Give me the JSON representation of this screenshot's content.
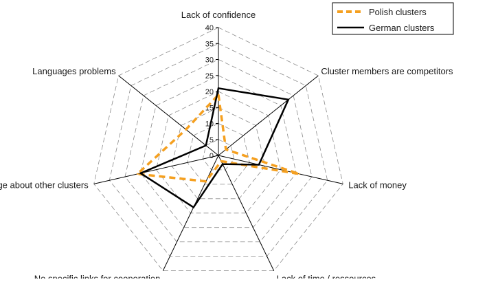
{
  "chart_data": {
    "type": "radar",
    "axes": [
      "Lack of confidence",
      "Cluster members are competitors",
      "Lack of money",
      "Lack of time / ressources",
      "No specific links for cooperation",
      "Little knowledge about other clusters",
      "Languages problems"
    ],
    "series": [
      {
        "name": "Polish clusters",
        "values": [
          19,
          3,
          26,
          2,
          9,
          26,
          13
        ],
        "color": "#f5a020",
        "style": "dashed"
      },
      {
        "name": "German clusters",
        "values": [
          21,
          28,
          13,
          3,
          18,
          25,
          5
        ],
        "color": "#000000",
        "style": "solid"
      }
    ],
    "rlim": [
      0,
      40
    ],
    "ticks": [
      "0",
      "5",
      "10",
      "15",
      "20",
      "25",
      "30",
      "35",
      "40"
    ],
    "grid": true,
    "legend_position": "top-right"
  }
}
